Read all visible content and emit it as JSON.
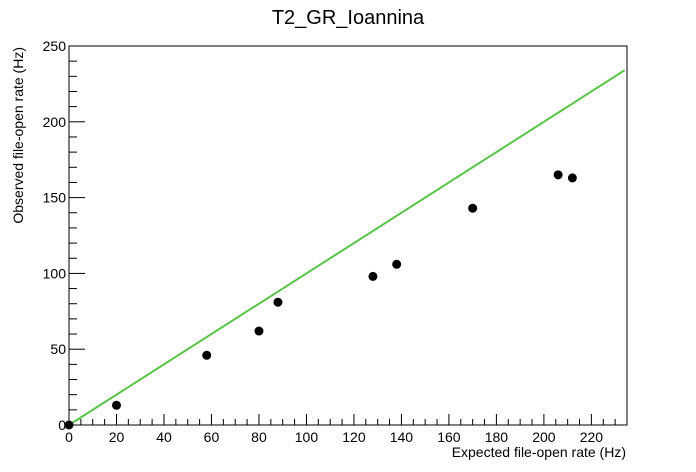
{
  "chart_data": {
    "type": "scatter",
    "title": "T2_GR_Ioannina",
    "xlabel": "Expected file-open rate (Hz)",
    "ylabel": "Observed file-open rate (Hz)",
    "xlim": [
      0,
      235
    ],
    "ylim": [
      0,
      250
    ],
    "x_ticks": [
      0,
      20,
      40,
      60,
      80,
      100,
      120,
      140,
      160,
      180,
      200,
      220
    ],
    "y_ticks": [
      0,
      50,
      100,
      150,
      200,
      250
    ],
    "grid": false,
    "legend": "none",
    "points": [
      {
        "x": 0,
        "y": 0
      },
      {
        "x": 20,
        "y": 13
      },
      {
        "x": 58,
        "y": 46
      },
      {
        "x": 80,
        "y": 62
      },
      {
        "x": 88,
        "y": 81
      },
      {
        "x": 128,
        "y": 98
      },
      {
        "x": 138,
        "y": 106
      },
      {
        "x": 170,
        "y": 143
      },
      {
        "x": 206,
        "y": 165
      },
      {
        "x": 212,
        "y": 163
      }
    ],
    "reference_line": {
      "x": [
        0,
        234
      ],
      "y": [
        0,
        234
      ],
      "color": "#58c547"
    },
    "marker_color": "#000000"
  }
}
